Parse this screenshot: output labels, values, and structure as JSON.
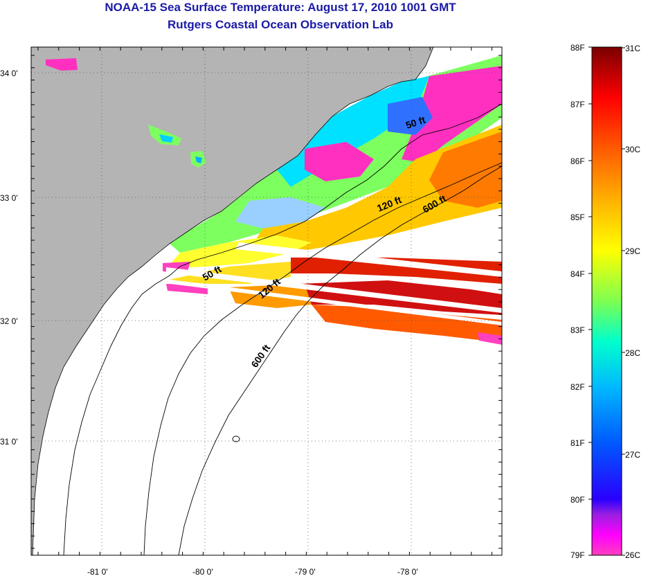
{
  "header": {
    "title": "NOAA-15 Sea Surface Temperature:  August 17, 2010 1001 GMT",
    "subtitle": "Rutgers Coastal Ocean Observation Lab"
  },
  "map": {
    "lat_labels": [
      "34 0'",
      "33 0'",
      "32 0'",
      "31 0'"
    ],
    "lon_labels": [
      "-81 0'",
      "-80 0'",
      "-79 0'",
      "-78 0'"
    ],
    "contour_labels": [
      "50 ft",
      "120 ft",
      "600 ft",
      "50 ft",
      "120 ft",
      "600 ft"
    ]
  },
  "colorbar": {
    "fahrenheit_labels": [
      "88F",
      "87F",
      "86F",
      "85F",
      "84F",
      "83F",
      "82F",
      "81F",
      "80F",
      "79F"
    ],
    "celsius_labels": [
      "31C",
      "30C",
      "29C",
      "28C",
      "27C",
      "26C"
    ]
  },
  "colors": {
    "land": "#b4b4b4",
    "no_data": "#ffffff",
    "title": "#1a1aa6"
  }
}
